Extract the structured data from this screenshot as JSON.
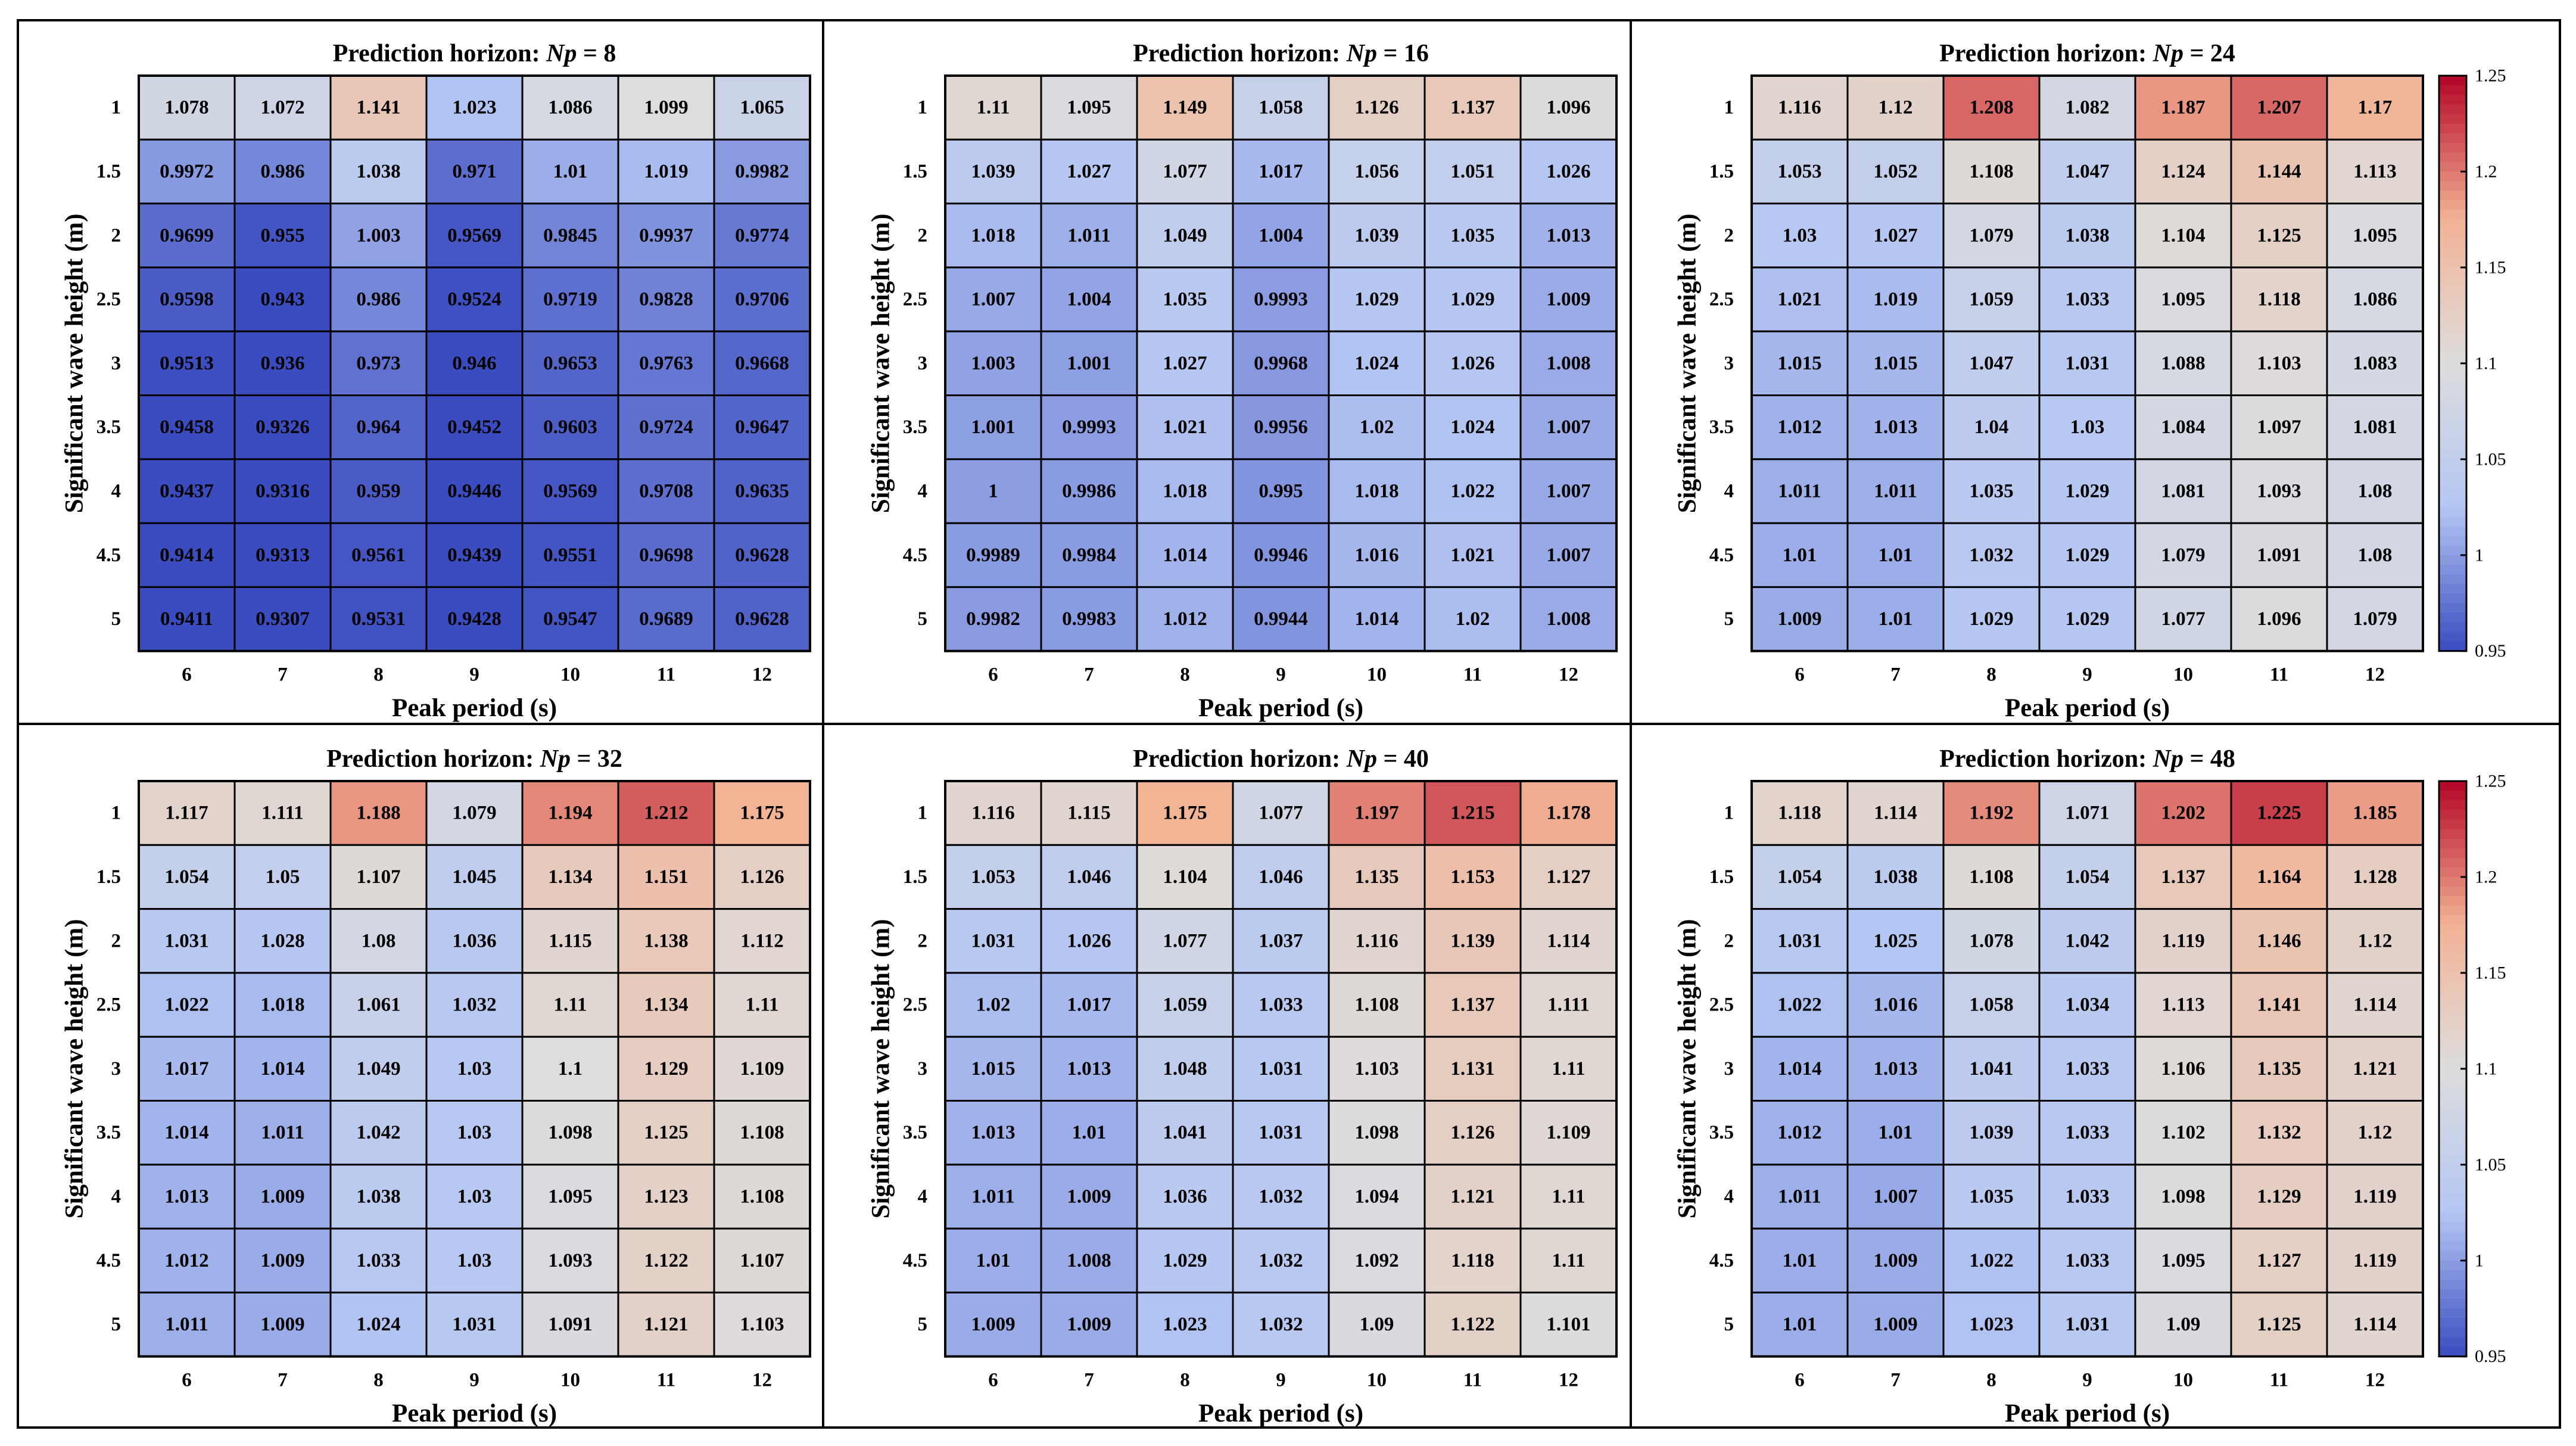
{
  "figure": {
    "shared": {
      "type": "heatmap",
      "x_categories": [
        "6",
        "7",
        "8",
        "9",
        "10",
        "11",
        "12"
      ],
      "y_categories": [
        "1",
        "1.5",
        "2",
        "2.5",
        "3",
        "3.5",
        "4",
        "4.5",
        "5"
      ],
      "xlabel": "Peak period (s)",
      "ylabel": "Significant wave height (m)",
      "title_prefix": "Prediction horizon: ",
      "np_symbol": "Np",
      "equals": " = ",
      "colorbar_ticks": [
        "0.95",
        "1",
        "1.05",
        "1.1",
        "1.15",
        "1.2",
        "1.25"
      ],
      "color_range": [
        0.95,
        1.25
      ],
      "colormap": [
        "#3b4cc0",
        "#b4c6f3",
        "#dddddd",
        "#f3b395",
        "#b40426"
      ]
    }
  },
  "chart_data": [
    {
      "type": "heatmap",
      "np_value": "8",
      "title": "Prediction horizon: Np = 8",
      "values": [
        [
          "1.078",
          "1.072",
          "1.141",
          "1.023",
          "1.086",
          "1.099",
          "1.065"
        ],
        [
          "0.9972",
          "0.986",
          "1.038",
          "0.971",
          "1.01",
          "1.019",
          "0.9982"
        ],
        [
          "0.9699",
          "0.955",
          "1.003",
          "0.9569",
          "0.9845",
          "0.9937",
          "0.9774"
        ],
        [
          "0.9598",
          "0.943",
          "0.986",
          "0.9524",
          "0.9719",
          "0.9828",
          "0.9706"
        ],
        [
          "0.9513",
          "0.936",
          "0.973",
          "0.946",
          "0.9653",
          "0.9763",
          "0.9668"
        ],
        [
          "0.9458",
          "0.9326",
          "0.964",
          "0.9452",
          "0.9603",
          "0.9724",
          "0.9647"
        ],
        [
          "0.9437",
          "0.9316",
          "0.959",
          "0.9446",
          "0.9569",
          "0.9708",
          "0.9635"
        ],
        [
          "0.9414",
          "0.9313",
          "0.9561",
          "0.9439",
          "0.9551",
          "0.9698",
          "0.9628"
        ],
        [
          "0.9411",
          "0.9307",
          "0.9531",
          "0.9428",
          "0.9547",
          "0.9689",
          "0.9628"
        ]
      ]
    },
    {
      "type": "heatmap",
      "np_value": "16",
      "title": "Prediction horizon: Np = 16",
      "values": [
        [
          "1.11",
          "1.095",
          "1.149",
          "1.058",
          "1.126",
          "1.137",
          "1.096"
        ],
        [
          "1.039",
          "1.027",
          "1.077",
          "1.017",
          "1.056",
          "1.051",
          "1.026"
        ],
        [
          "1.018",
          "1.011",
          "1.049",
          "1.004",
          "1.039",
          "1.035",
          "1.013"
        ],
        [
          "1.007",
          "1.004",
          "1.035",
          "0.9993",
          "1.029",
          "1.029",
          "1.009"
        ],
        [
          "1.003",
          "1.001",
          "1.027",
          "0.9968",
          "1.024",
          "1.026",
          "1.008"
        ],
        [
          "1.001",
          "0.9993",
          "1.021",
          "0.9956",
          "1.02",
          "1.024",
          "1.007"
        ],
        [
          "1",
          "0.9986",
          "1.018",
          "0.995",
          "1.018",
          "1.022",
          "1.007"
        ],
        [
          "0.9989",
          "0.9984",
          "1.014",
          "0.9946",
          "1.016",
          "1.021",
          "1.007"
        ],
        [
          "0.9982",
          "0.9983",
          "1.012",
          "0.9944",
          "1.014",
          "1.02",
          "1.008"
        ]
      ]
    },
    {
      "type": "heatmap",
      "np_value": "24",
      "title": "Prediction horizon: Np = 24",
      "colorbar": true,
      "values": [
        [
          "1.116",
          "1.12",
          "1.208",
          "1.082",
          "1.187",
          "1.207",
          "1.17"
        ],
        [
          "1.053",
          "1.052",
          "1.108",
          "1.047",
          "1.124",
          "1.144",
          "1.113"
        ],
        [
          "1.03",
          "1.027",
          "1.079",
          "1.038",
          "1.104",
          "1.125",
          "1.095"
        ],
        [
          "1.021",
          "1.019",
          "1.059",
          "1.033",
          "1.095",
          "1.118",
          "1.086"
        ],
        [
          "1.015",
          "1.015",
          "1.047",
          "1.031",
          "1.088",
          "1.103",
          "1.083"
        ],
        [
          "1.012",
          "1.013",
          "1.04",
          "1.03",
          "1.084",
          "1.097",
          "1.081"
        ],
        [
          "1.011",
          "1.011",
          "1.035",
          "1.029",
          "1.081",
          "1.093",
          "1.08"
        ],
        [
          "1.01",
          "1.01",
          "1.032",
          "1.029",
          "1.079",
          "1.091",
          "1.08"
        ],
        [
          "1.009",
          "1.01",
          "1.029",
          "1.029",
          "1.077",
          "1.096",
          "1.079"
        ]
      ]
    },
    {
      "type": "heatmap",
      "np_value": "32",
      "title": "Prediction horizon: Np = 32",
      "values": [
        [
          "1.117",
          "1.111",
          "1.188",
          "1.079",
          "1.194",
          "1.212",
          "1.175"
        ],
        [
          "1.054",
          "1.05",
          "1.107",
          "1.045",
          "1.134",
          "1.151",
          "1.126"
        ],
        [
          "1.031",
          "1.028",
          "1.08",
          "1.036",
          "1.115",
          "1.138",
          "1.112"
        ],
        [
          "1.022",
          "1.018",
          "1.061",
          "1.032",
          "1.11",
          "1.134",
          "1.11"
        ],
        [
          "1.017",
          "1.014",
          "1.049",
          "1.03",
          "1.1",
          "1.129",
          "1.109"
        ],
        [
          "1.014",
          "1.011",
          "1.042",
          "1.03",
          "1.098",
          "1.125",
          "1.108"
        ],
        [
          "1.013",
          "1.009",
          "1.038",
          "1.03",
          "1.095",
          "1.123",
          "1.108"
        ],
        [
          "1.012",
          "1.009",
          "1.033",
          "1.03",
          "1.093",
          "1.122",
          "1.107"
        ],
        [
          "1.011",
          "1.009",
          "1.024",
          "1.031",
          "1.091",
          "1.121",
          "1.103"
        ]
      ]
    },
    {
      "type": "heatmap",
      "np_value": "40",
      "title": "Prediction horizon: Np = 40",
      "values": [
        [
          "1.116",
          "1.115",
          "1.175",
          "1.077",
          "1.197",
          "1.215",
          "1.178"
        ],
        [
          "1.053",
          "1.046",
          "1.104",
          "1.046",
          "1.135",
          "1.153",
          "1.127"
        ],
        [
          "1.031",
          "1.026",
          "1.077",
          "1.037",
          "1.116",
          "1.139",
          "1.114"
        ],
        [
          "1.02",
          "1.017",
          "1.059",
          "1.033",
          "1.108",
          "1.137",
          "1.111"
        ],
        [
          "1.015",
          "1.013",
          "1.048",
          "1.031",
          "1.103",
          "1.131",
          "1.11"
        ],
        [
          "1.013",
          "1.01",
          "1.041",
          "1.031",
          "1.098",
          "1.126",
          "1.109"
        ],
        [
          "1.011",
          "1.009",
          "1.036",
          "1.032",
          "1.094",
          "1.121",
          "1.11"
        ],
        [
          "1.01",
          "1.008",
          "1.029",
          "1.032",
          "1.092",
          "1.118",
          "1.11"
        ],
        [
          "1.009",
          "1.009",
          "1.023",
          "1.032",
          "1.09",
          "1.122",
          "1.101"
        ]
      ]
    },
    {
      "type": "heatmap",
      "np_value": "48",
      "title": "Prediction horizon: Np = 48",
      "colorbar": true,
      "values": [
        [
          "1.118",
          "1.114",
          "1.192",
          "1.071",
          "1.202",
          "1.225",
          "1.185"
        ],
        [
          "1.054",
          "1.038",
          "1.108",
          "1.054",
          "1.137",
          "1.164",
          "1.128"
        ],
        [
          "1.031",
          "1.025",
          "1.078",
          "1.042",
          "1.119",
          "1.146",
          "1.12"
        ],
        [
          "1.022",
          "1.016",
          "1.058",
          "1.034",
          "1.113",
          "1.141",
          "1.114"
        ],
        [
          "1.014",
          "1.013",
          "1.041",
          "1.033",
          "1.106",
          "1.135",
          "1.121"
        ],
        [
          "1.012",
          "1.01",
          "1.039",
          "1.033",
          "1.102",
          "1.132",
          "1.12"
        ],
        [
          "1.011",
          "1.007",
          "1.035",
          "1.033",
          "1.098",
          "1.129",
          "1.119"
        ],
        [
          "1.01",
          "1.009",
          "1.022",
          "1.033",
          "1.095",
          "1.127",
          "1.119"
        ],
        [
          "1.01",
          "1.009",
          "1.023",
          "1.031",
          "1.09",
          "1.125",
          "1.114"
        ]
      ]
    }
  ]
}
